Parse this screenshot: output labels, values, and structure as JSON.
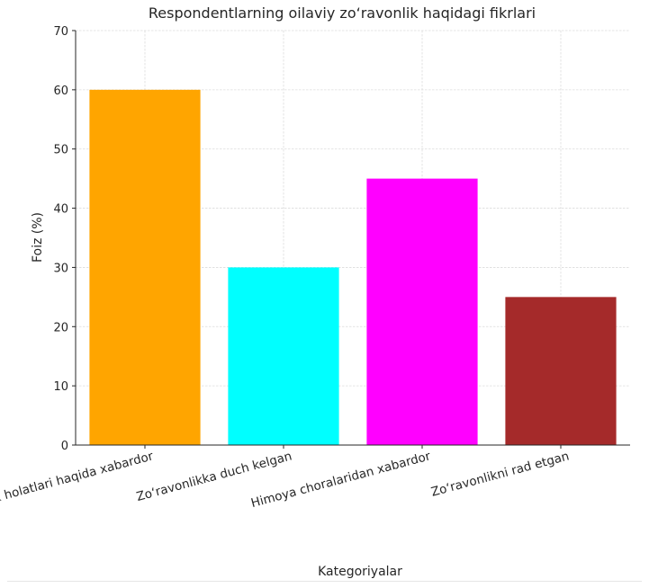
{
  "chart_data": {
    "type": "bar",
    "title": "Respondentlarning oilaviy zo‘ravonlik haqidagi fikrlari",
    "xlabel": "Kategoriyalar",
    "ylabel": "Foiz (%)",
    "categories": [
      "Zo‘ravonlik holatlari haqida xabardor",
      "Zo‘ravonlikka duch kelgan",
      "Himoya choralaridan xabardor",
      "Zo‘ravonlikni rad etgan"
    ],
    "values": [
      60,
      30,
      45,
      25
    ],
    "colors": [
      "#ffa500",
      "#00ffff",
      "#ff00ff",
      "#a52a2a"
    ],
    "ylim": [
      0,
      70
    ],
    "yticks": [
      0,
      10,
      20,
      30,
      40,
      50,
      60,
      70
    ],
    "grid": true,
    "legend": "none"
  }
}
